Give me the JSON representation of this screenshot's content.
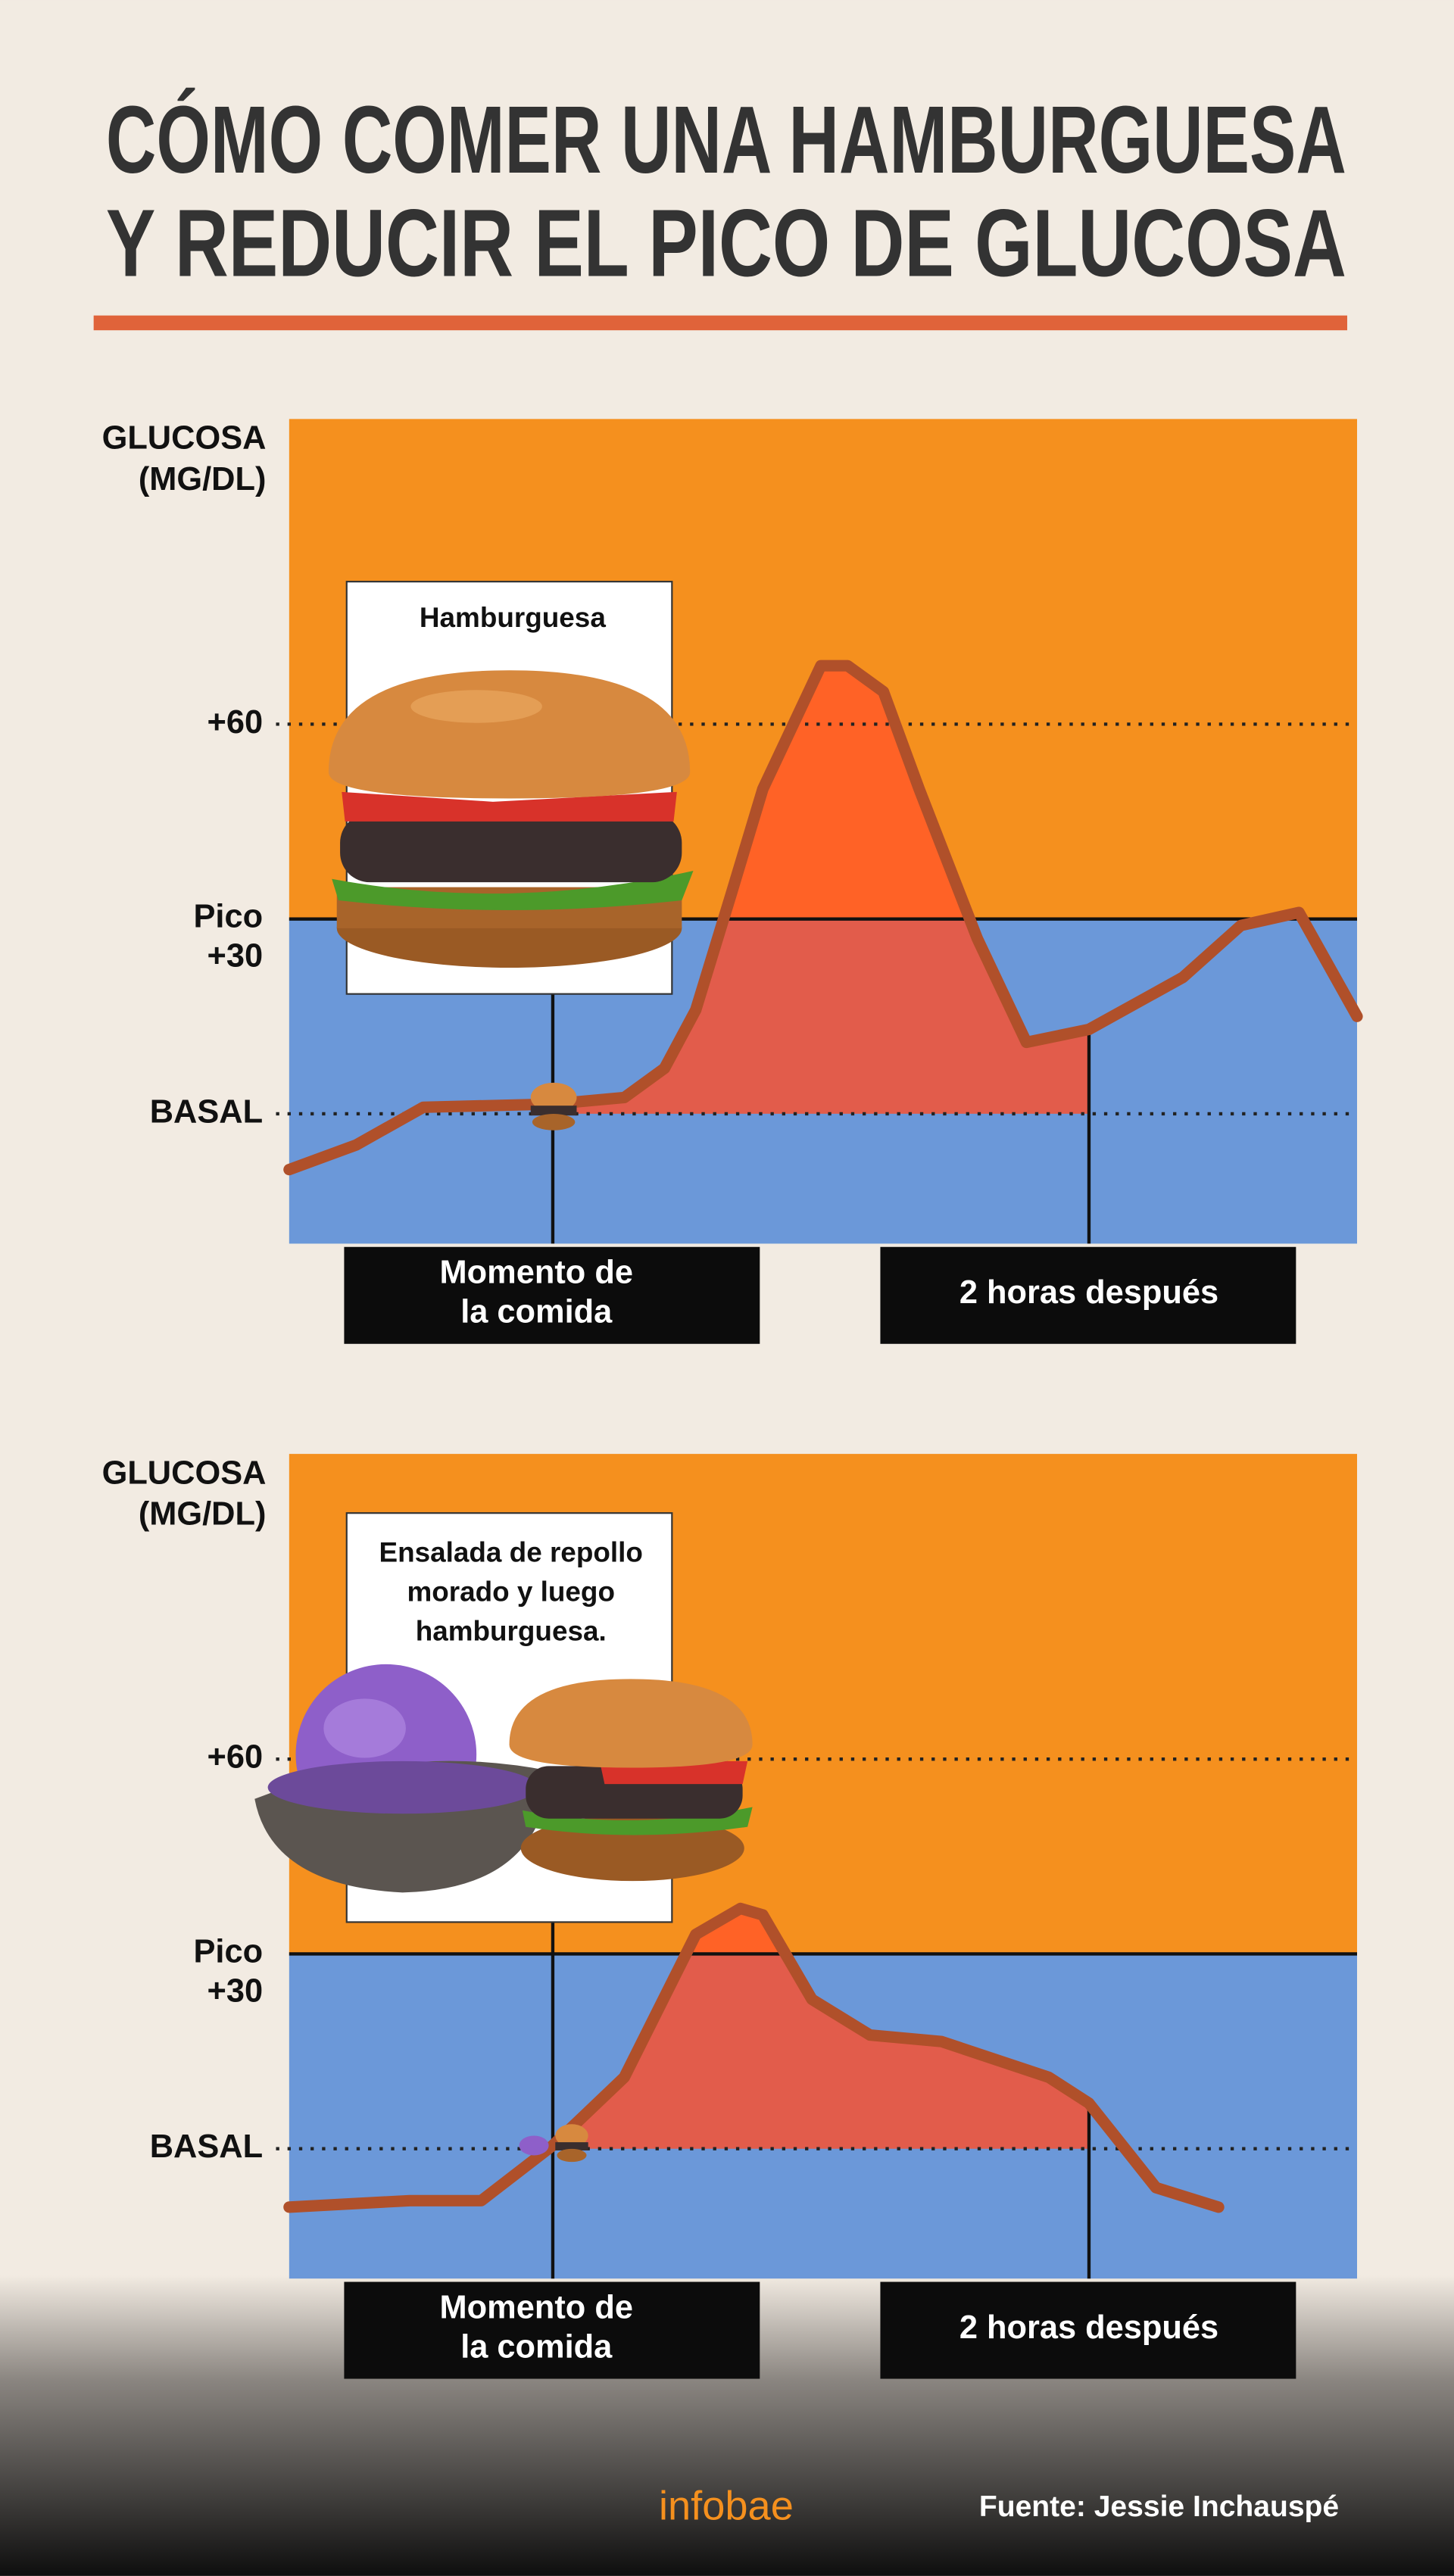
{
  "title": "CÓMO COMER UNA HAMBURGUESA\nY REDUCIR EL PICO DE GLUCOSA",
  "chart_data": [
    {
      "type": "line",
      "y_label": "GLUCOSA\n(MG/DL)",
      "annotation": "Hamburguesa",
      "x": [
        -59,
        -44,
        -29,
        0,
        16,
        25,
        32,
        40,
        47,
        60,
        66,
        74,
        82,
        95,
        106,
        120,
        141,
        154,
        167,
        180
      ],
      "series": [
        {
          "color": "#b0502a",
          "values": [
            -8.6,
            -4.8,
            1,
            1.5,
            2.5,
            7,
            16,
            34,
            50,
            69,
            69,
            65,
            50,
            27,
            11,
            13,
            21,
            29,
            31,
            15
          ]
        }
      ],
      "xlim": [
        -59,
        180
      ],
      "xticks": [
        {
          "value": 0,
          "label": "Momento de\nla  comida"
        },
        {
          "value": 120,
          "label": "2 horas después"
        }
      ],
      "ylim": [
        -20,
        107
      ],
      "yticks": [
        {
          "value": 0,
          "label": "BASAL"
        },
        {
          "value": 30,
          "label": "Pico\n+30"
        },
        {
          "value": 60,
          "label": "+60"
        }
      ]
    },
    {
      "type": "line",
      "y_label": "GLUCOSA\n(MG/DL)",
      "annotation": "Ensalada de repollo\nmorado y luego\nhamburguesa.",
      "x": [
        -59,
        -32,
        -16,
        0,
        16,
        32,
        42,
        47,
        58,
        71,
        87,
        111,
        120,
        135,
        149
      ],
      "series": [
        {
          "color": "#b0502a",
          "values": [
            -9,
            -8,
            -8,
            0.5,
            11,
            33,
            37,
            36,
            23,
            17.5,
            16.5,
            11,
            7,
            -6,
            -9
          ]
        }
      ],
      "xlim": [
        -59,
        180
      ],
      "xticks": [
        {
          "value": 0,
          "label": "Momento de\nla  comida"
        },
        {
          "value": 120,
          "label": "2 horas después"
        }
      ],
      "ylim": [
        -20,
        107
      ],
      "yticks": [
        {
          "value": 0,
          "label": "BASAL"
        },
        {
          "value": 30,
          "label": "Pico\n+30"
        },
        {
          "value": 60,
          "label": "+60"
        }
      ]
    }
  ],
  "brand": "infobae",
  "source": "Fuente: Jessie Inchauspé"
}
